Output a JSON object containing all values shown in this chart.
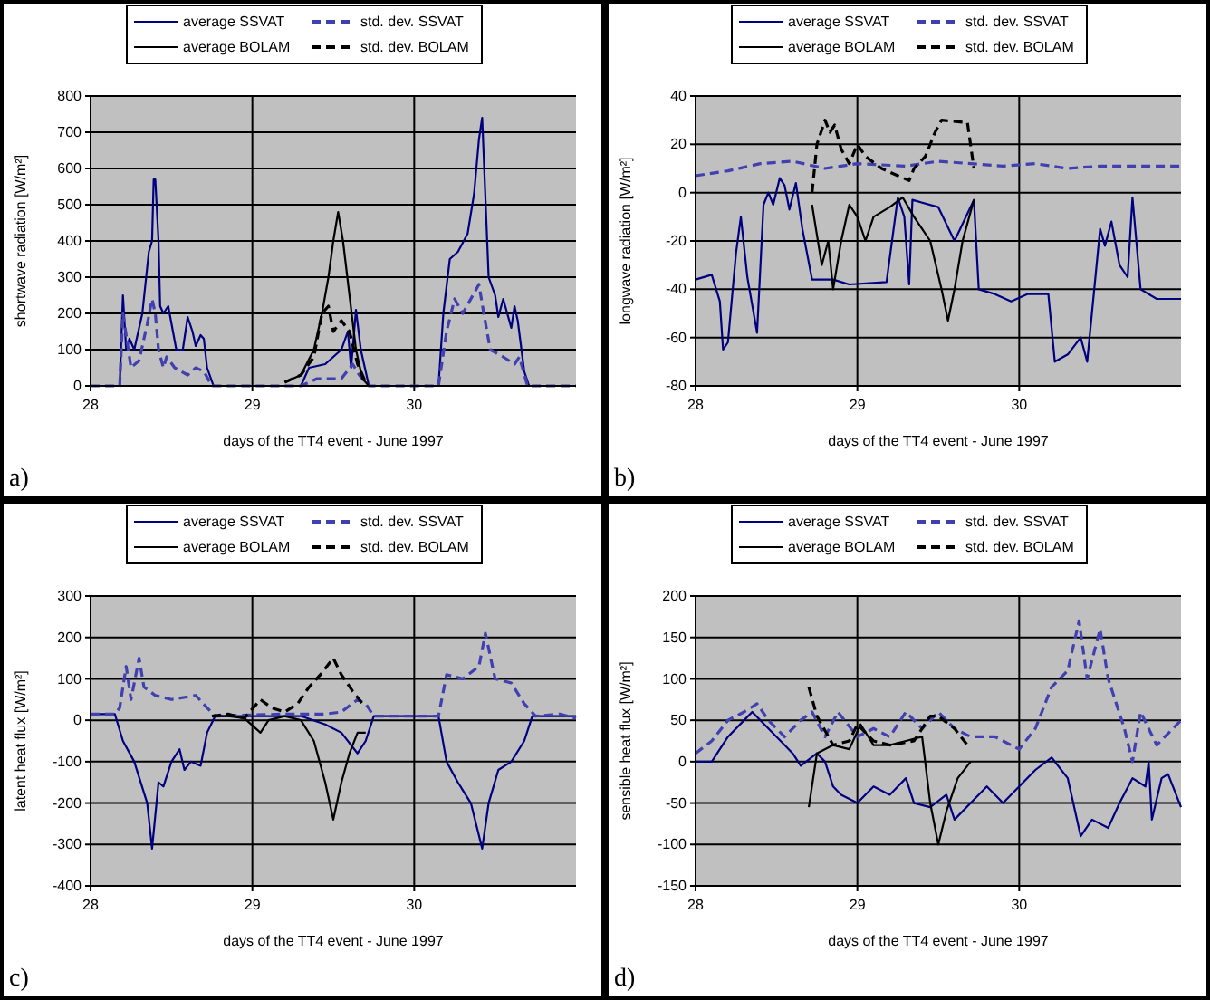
{
  "chart_data": [
    {
      "type": "line",
      "ylabel": "shortwave radiation [W/m²]",
      "xlabel": "days of the TT4 event - June 1997",
      "annotations": [
        "a)"
      ],
      "xlim": [
        28,
        31
      ],
      "xticks": [
        28,
        29,
        30
      ],
      "ylim": [
        0,
        800
      ],
      "yticks": [
        0,
        100,
        200,
        300,
        400,
        500,
        600,
        700,
        800
      ],
      "grid": true,
      "legend": "top",
      "series": [
        {
          "name": "average SSVAT",
          "color": "#000080",
          "line_style": "solid",
          "x": [
            28,
            28.18,
            28.2,
            28.22,
            28.24,
            28.27,
            28.32,
            28.36,
            28.38,
            28.39,
            28.4,
            28.42,
            28.43,
            28.45,
            28.48,
            28.53,
            28.57,
            28.6,
            28.63,
            28.65,
            28.68,
            28.7,
            28.72,
            28.76,
            29.3,
            29.35,
            29.45,
            29.55,
            29.59,
            29.61,
            29.64,
            29.67,
            29.72,
            30.15,
            30.18,
            30.22,
            30.27,
            30.33,
            30.37,
            30.4,
            30.42,
            30.43,
            30.46,
            30.5,
            30.52,
            30.55,
            30.6,
            30.62,
            30.64,
            30.68,
            30.71,
            31
          ],
          "values": [
            0,
            0,
            250,
            100,
            130,
            100,
            200,
            370,
            400,
            570,
            570,
            400,
            220,
            200,
            220,
            100,
            100,
            190,
            150,
            110,
            140,
            130,
            50,
            0,
            0,
            50,
            60,
            100,
            150,
            50,
            210,
            100,
            0,
            0,
            200,
            350,
            370,
            420,
            530,
            680,
            740,
            630,
            300,
            250,
            190,
            240,
            160,
            220,
            180,
            40,
            0,
            0
          ]
        },
        {
          "name": "std. dev. SSVAT",
          "color": "#4040b0",
          "line_style": "dashed",
          "x": [
            28,
            28.18,
            28.2,
            28.25,
            28.3,
            28.35,
            28.38,
            28.4,
            28.42,
            28.45,
            28.47,
            28.52,
            28.6,
            28.65,
            28.7,
            28.75,
            29.3,
            29.4,
            29.55,
            29.62,
            29.66,
            29.72,
            30.15,
            30.2,
            30.25,
            30.3,
            30.4,
            30.43,
            30.47,
            30.55,
            30.62,
            30.65,
            30.7,
            31
          ],
          "values": [
            0,
            0,
            200,
            50,
            70,
            170,
            240,
            200,
            100,
            50,
            80,
            50,
            30,
            50,
            40,
            0,
            0,
            20,
            20,
            60,
            30,
            0,
            0,
            150,
            240,
            200,
            280,
            200,
            100,
            80,
            60,
            80,
            0,
            0
          ]
        },
        {
          "name": "average BOLAM",
          "color": "#000000",
          "line_style": "solid",
          "x": [
            29.2,
            29.3,
            29.38,
            29.43,
            29.47,
            29.5,
            29.53,
            29.56,
            29.6,
            29.64,
            29.68,
            29.72
          ],
          "values": [
            10,
            30,
            100,
            200,
            300,
            400,
            480,
            400,
            250,
            100,
            20,
            0
          ]
        },
        {
          "name": "std. dev. BOLAM",
          "color": "#000000",
          "line_style": "dashed",
          "x": [
            29.2,
            29.3,
            29.38,
            29.43,
            29.47,
            29.5,
            29.55,
            29.6,
            29.65,
            29.7
          ],
          "values": [
            10,
            30,
            80,
            200,
            220,
            150,
            180,
            150,
            60,
            10
          ]
        }
      ]
    },
    {
      "type": "line",
      "ylabel": "longwave radiation [W/m²]",
      "xlabel": "days of the TT4 event - June 1997",
      "annotations": [
        "b)"
      ],
      "xlim": [
        28,
        31
      ],
      "xticks": [
        28,
        29,
        30
      ],
      "ylim": [
        -80,
        40
      ],
      "yticks": [
        -80,
        -60,
        -40,
        -20,
        0,
        20,
        40
      ],
      "grid": true,
      "legend": "top",
      "series": [
        {
          "name": "average SSVAT",
          "color": "#000080",
          "line_style": "solid",
          "x": [
            28,
            28.1,
            28.15,
            28.17,
            28.2,
            28.25,
            28.28,
            28.32,
            28.38,
            28.42,
            28.45,
            28.48,
            28.52,
            28.55,
            28.58,
            28.62,
            28.66,
            28.72,
            28.85,
            28.95,
            29.18,
            29.25,
            29.29,
            29.32,
            29.34,
            29.5,
            29.6,
            29.72,
            29.75,
            29.85,
            29.95,
            30.05,
            30.18,
            30.22,
            30.3,
            30.38,
            30.42,
            30.5,
            30.53,
            30.57,
            30.62,
            30.67,
            30.7,
            30.75,
            30.85,
            31
          ],
          "values": [
            -36,
            -34,
            -45,
            -65,
            -62,
            -25,
            -10,
            -35,
            -58,
            -5,
            0,
            -5,
            6,
            3,
            -7,
            4,
            -15,
            -36,
            -36,
            -38,
            -37,
            -2,
            -10,
            -38,
            -3,
            -6,
            -20,
            -3,
            -40,
            -42,
            -45,
            -42,
            -42,
            -70,
            -67,
            -60,
            -70,
            -15,
            -22,
            -12,
            -30,
            -35,
            -2,
            -40,
            -44,
            -44
          ]
        },
        {
          "name": "std. dev. SSVAT",
          "color": "#4040b0",
          "line_style": "dashed",
          "x": [
            28,
            28.2,
            28.4,
            28.6,
            28.8,
            29,
            29.3,
            29.5,
            29.7,
            29.9,
            30.1,
            30.3,
            30.5,
            30.7,
            31
          ],
          "values": [
            7,
            9,
            12,
            13,
            10,
            12,
            11,
            13,
            12,
            11,
            12,
            10,
            11,
            11,
            11
          ]
        },
        {
          "name": "average BOLAM",
          "color": "#000000",
          "line_style": "solid",
          "x": [
            28.72,
            28.78,
            28.82,
            28.85,
            28.9,
            28.95,
            29,
            29.05,
            29.1,
            29.2,
            29.28,
            29.35,
            29.45,
            29.52,
            29.56,
            29.6,
            29.65,
            29.72
          ],
          "values": [
            -5,
            -30,
            -20,
            -40,
            -20,
            -5,
            -10,
            -20,
            -10,
            -6,
            -2,
            -10,
            -20,
            -40,
            -53,
            -40,
            -20,
            -3
          ]
        },
        {
          "name": "std. dev. BOLAM",
          "color": "#000000",
          "line_style": "dashed",
          "x": [
            28.72,
            28.75,
            28.8,
            28.83,
            28.86,
            28.9,
            28.95,
            29,
            29.05,
            29.15,
            29.25,
            29.32,
            29.35,
            29.42,
            29.48,
            29.52,
            29.68,
            29.72
          ],
          "values": [
            0,
            20,
            30,
            25,
            28,
            18,
            12,
            20,
            15,
            10,
            7,
            5,
            10,
            15,
            25,
            30,
            29,
            10
          ]
        }
      ]
    },
    {
      "type": "line",
      "ylabel": "latent heat flux [W/m²]",
      "xlabel": "days of the TT4 event - June 1997",
      "annotations": [
        "c)"
      ],
      "xlim": [
        28,
        31
      ],
      "xticks": [
        28,
        29,
        30
      ],
      "ylim": [
        -400,
        300
      ],
      "yticks": [
        -400,
        -300,
        -200,
        -100,
        0,
        100,
        200,
        300
      ],
      "grid": true,
      "legend": "top",
      "series": [
        {
          "name": "average SSVAT",
          "color": "#000080",
          "line_style": "solid",
          "x": [
            28,
            28.15,
            28.2,
            28.27,
            28.35,
            28.38,
            28.42,
            28.45,
            28.5,
            28.55,
            28.58,
            28.62,
            28.68,
            28.72,
            28.77,
            29,
            29.3,
            29.45,
            29.55,
            29.65,
            29.7,
            29.75,
            30.15,
            30.2,
            30.27,
            30.35,
            30.42,
            30.46,
            30.52,
            30.6,
            30.68,
            30.73,
            31
          ],
          "values": [
            15,
            15,
            -50,
            -100,
            -200,
            -310,
            -150,
            -160,
            -100,
            -70,
            -120,
            -100,
            -110,
            -30,
            10,
            10,
            10,
            -10,
            -30,
            -80,
            -50,
            10,
            10,
            -100,
            -150,
            -200,
            -310,
            -200,
            -120,
            -100,
            -50,
            10,
            10
          ]
        },
        {
          "name": "std. dev. SSVAT",
          "color": "#4040b0",
          "line_style": "dashed",
          "x": [
            28,
            28.15,
            28.18,
            28.22,
            28.25,
            28.3,
            28.33,
            28.4,
            28.5,
            28.65,
            28.72,
            28.77,
            29.2,
            29.45,
            29.55,
            29.65,
            29.7,
            29.75,
            30.15,
            30.2,
            30.3,
            30.4,
            30.44,
            30.5,
            30.6,
            30.68,
            30.75,
            30.9,
            31
          ],
          "values": [
            15,
            15,
            30,
            130,
            50,
            150,
            80,
            60,
            50,
            60,
            30,
            10,
            15,
            15,
            20,
            50,
            40,
            10,
            10,
            110,
            100,
            130,
            210,
            100,
            90,
            40,
            10,
            15,
            5
          ]
        },
        {
          "name": "average BOLAM",
          "color": "#000000",
          "line_style": "solid",
          "x": [
            28.75,
            28.85,
            28.95,
            29.05,
            29.1,
            29.2,
            29.3,
            29.38,
            29.45,
            29.5,
            29.55,
            29.6,
            29.65,
            29.7
          ],
          "values": [
            10,
            10,
            5,
            -30,
            0,
            10,
            0,
            -50,
            -150,
            -240,
            -150,
            -80,
            -30,
            -30
          ]
        },
        {
          "name": "std. dev. BOLAM",
          "color": "#000000",
          "line_style": "dashed",
          "x": [
            28.75,
            28.85,
            28.95,
            29.05,
            29.12,
            29.2,
            29.28,
            29.35,
            29.42,
            29.5,
            29.55,
            29.62,
            29.68
          ],
          "values": [
            10,
            15,
            5,
            50,
            30,
            20,
            40,
            80,
            110,
            150,
            110,
            70,
            40
          ]
        }
      ]
    },
    {
      "type": "line",
      "ylabel": "sensible heat flux [W/m²]",
      "xlabel": "days of the TT4 event - June 1997",
      "annotations": [
        "d)"
      ],
      "xlim": [
        28,
        31
      ],
      "xticks": [
        28,
        29,
        30
      ],
      "ylim": [
        -150,
        200
      ],
      "yticks": [
        -150,
        -100,
        -50,
        0,
        50,
        100,
        150,
        200
      ],
      "grid": true,
      "legend": "top",
      "series": [
        {
          "name": "average SSVAT",
          "color": "#000080",
          "line_style": "solid",
          "x": [
            28,
            28.1,
            28.2,
            28.3,
            28.35,
            28.45,
            28.55,
            28.6,
            28.65,
            28.75,
            28.8,
            28.85,
            28.9,
            29,
            29.1,
            29.2,
            29.3,
            29.35,
            29.45,
            29.55,
            29.6,
            29.7,
            29.8,
            29.9,
            30,
            30.1,
            30.2,
            30.3,
            30.38,
            30.45,
            30.55,
            30.62,
            30.7,
            30.78,
            30.8,
            30.82,
            30.88,
            30.92,
            31
          ],
          "values": [
            0,
            0,
            30,
            50,
            60,
            40,
            20,
            10,
            -5,
            10,
            0,
            -30,
            -40,
            -50,
            -30,
            -40,
            -20,
            -50,
            -55,
            -40,
            -70,
            -50,
            -30,
            -50,
            -30,
            -10,
            5,
            -20,
            -90,
            -70,
            -80,
            -50,
            -20,
            -30,
            0,
            -70,
            -20,
            -15,
            -55
          ]
        },
        {
          "name": "std. dev. SSVAT",
          "color": "#4040b0",
          "line_style": "dashed",
          "x": [
            28,
            28.1,
            28.2,
            28.3,
            28.38,
            28.45,
            28.55,
            28.65,
            28.72,
            28.8,
            28.88,
            29,
            29.1,
            29.2,
            29.3,
            29.4,
            29.5,
            29.6,
            29.7,
            29.85,
            30,
            30.1,
            30.2,
            30.3,
            30.37,
            30.42,
            30.5,
            30.55,
            30.65,
            30.7,
            30.75,
            30.85,
            31
          ],
          "values": [
            10,
            25,
            50,
            60,
            70,
            50,
            30,
            50,
            60,
            30,
            60,
            30,
            40,
            30,
            60,
            40,
            60,
            40,
            30,
            30,
            15,
            40,
            90,
            110,
            170,
            100,
            160,
            100,
            40,
            0,
            60,
            20,
            50
          ]
        },
        {
          "name": "average BOLAM",
          "color": "#000000",
          "line_style": "solid",
          "x": [
            28.7,
            28.75,
            28.85,
            28.95,
            29.02,
            29.1,
            29.2,
            29.3,
            29.4,
            29.45,
            29.5,
            29.55,
            29.62,
            29.7
          ],
          "values": [
            -55,
            10,
            20,
            15,
            45,
            20,
            20,
            25,
            30,
            -50,
            -100,
            -60,
            -20,
            0
          ]
        },
        {
          "name": "std. dev. BOLAM",
          "color": "#000000",
          "line_style": "dashed",
          "x": [
            28.7,
            28.75,
            28.85,
            28.95,
            29,
            29.1,
            29.2,
            29.35,
            29.45,
            29.5,
            29.6,
            29.68
          ],
          "values": [
            90,
            55,
            20,
            25,
            45,
            25,
            20,
            25,
            55,
            55,
            40,
            20
          ]
        }
      ]
    }
  ]
}
